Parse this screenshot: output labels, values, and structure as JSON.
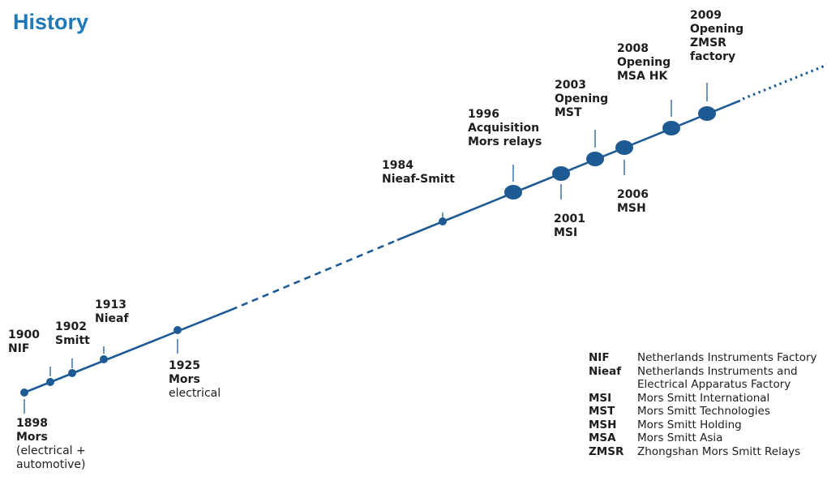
{
  "title": "History",
  "colors": {
    "accent": "#1f78b7",
    "line": "#1e5b95",
    "text": "#1d1d1b"
  },
  "events": [
    {
      "id": "e1898",
      "year": "1898",
      "bold": "Mors",
      "normal": [
        "(electrical +",
        "automotive)"
      ]
    },
    {
      "id": "e1900",
      "year": "1900",
      "bold": "NIF",
      "normal": []
    },
    {
      "id": "e1902",
      "year": "1902",
      "bold": "Smitt",
      "normal": []
    },
    {
      "id": "e1913",
      "year": "1913",
      "bold": "Nieaf",
      "normal": []
    },
    {
      "id": "e1925",
      "year": "1925",
      "bold": "Mors",
      "normal": [
        "electrical"
      ]
    },
    {
      "id": "e1984",
      "year": "1984",
      "bold": "Nieaf-Smitt",
      "normal": []
    },
    {
      "id": "e1996",
      "year": "1996",
      "bold": "Acquisition Mors relays",
      "normal": []
    },
    {
      "id": "e2001",
      "year": "2001",
      "bold": "MSI",
      "normal": []
    },
    {
      "id": "e2003",
      "year": "2003",
      "bold": "Opening MST",
      "normal": []
    },
    {
      "id": "e2006",
      "year": "2006",
      "bold": "MSH",
      "normal": []
    },
    {
      "id": "e2008",
      "year": "2008",
      "bold": "Opening MSA HK",
      "normal": []
    },
    {
      "id": "e2009",
      "year": "2009",
      "bold": "Opening ZMSR factory",
      "normal": []
    }
  ],
  "legend": [
    {
      "abbr": "NIF",
      "definition": "Netherlands Instruments Factory"
    },
    {
      "abbr": "Nieaf",
      "definition": "Netherlands Instruments and Electrical Apparatus Factory"
    },
    {
      "abbr": "MSI",
      "definition": "Mors Smitt International"
    },
    {
      "abbr": "MST",
      "definition": "Mors Smitt Technologies"
    },
    {
      "abbr": "MSH",
      "definition": "Mors Smitt Holding"
    },
    {
      "abbr": "MSA",
      "definition": "Mors Smitt Asia"
    },
    {
      "abbr": "ZMSR",
      "definition": "Zhongshan Mors Smitt Relays"
    }
  ]
}
